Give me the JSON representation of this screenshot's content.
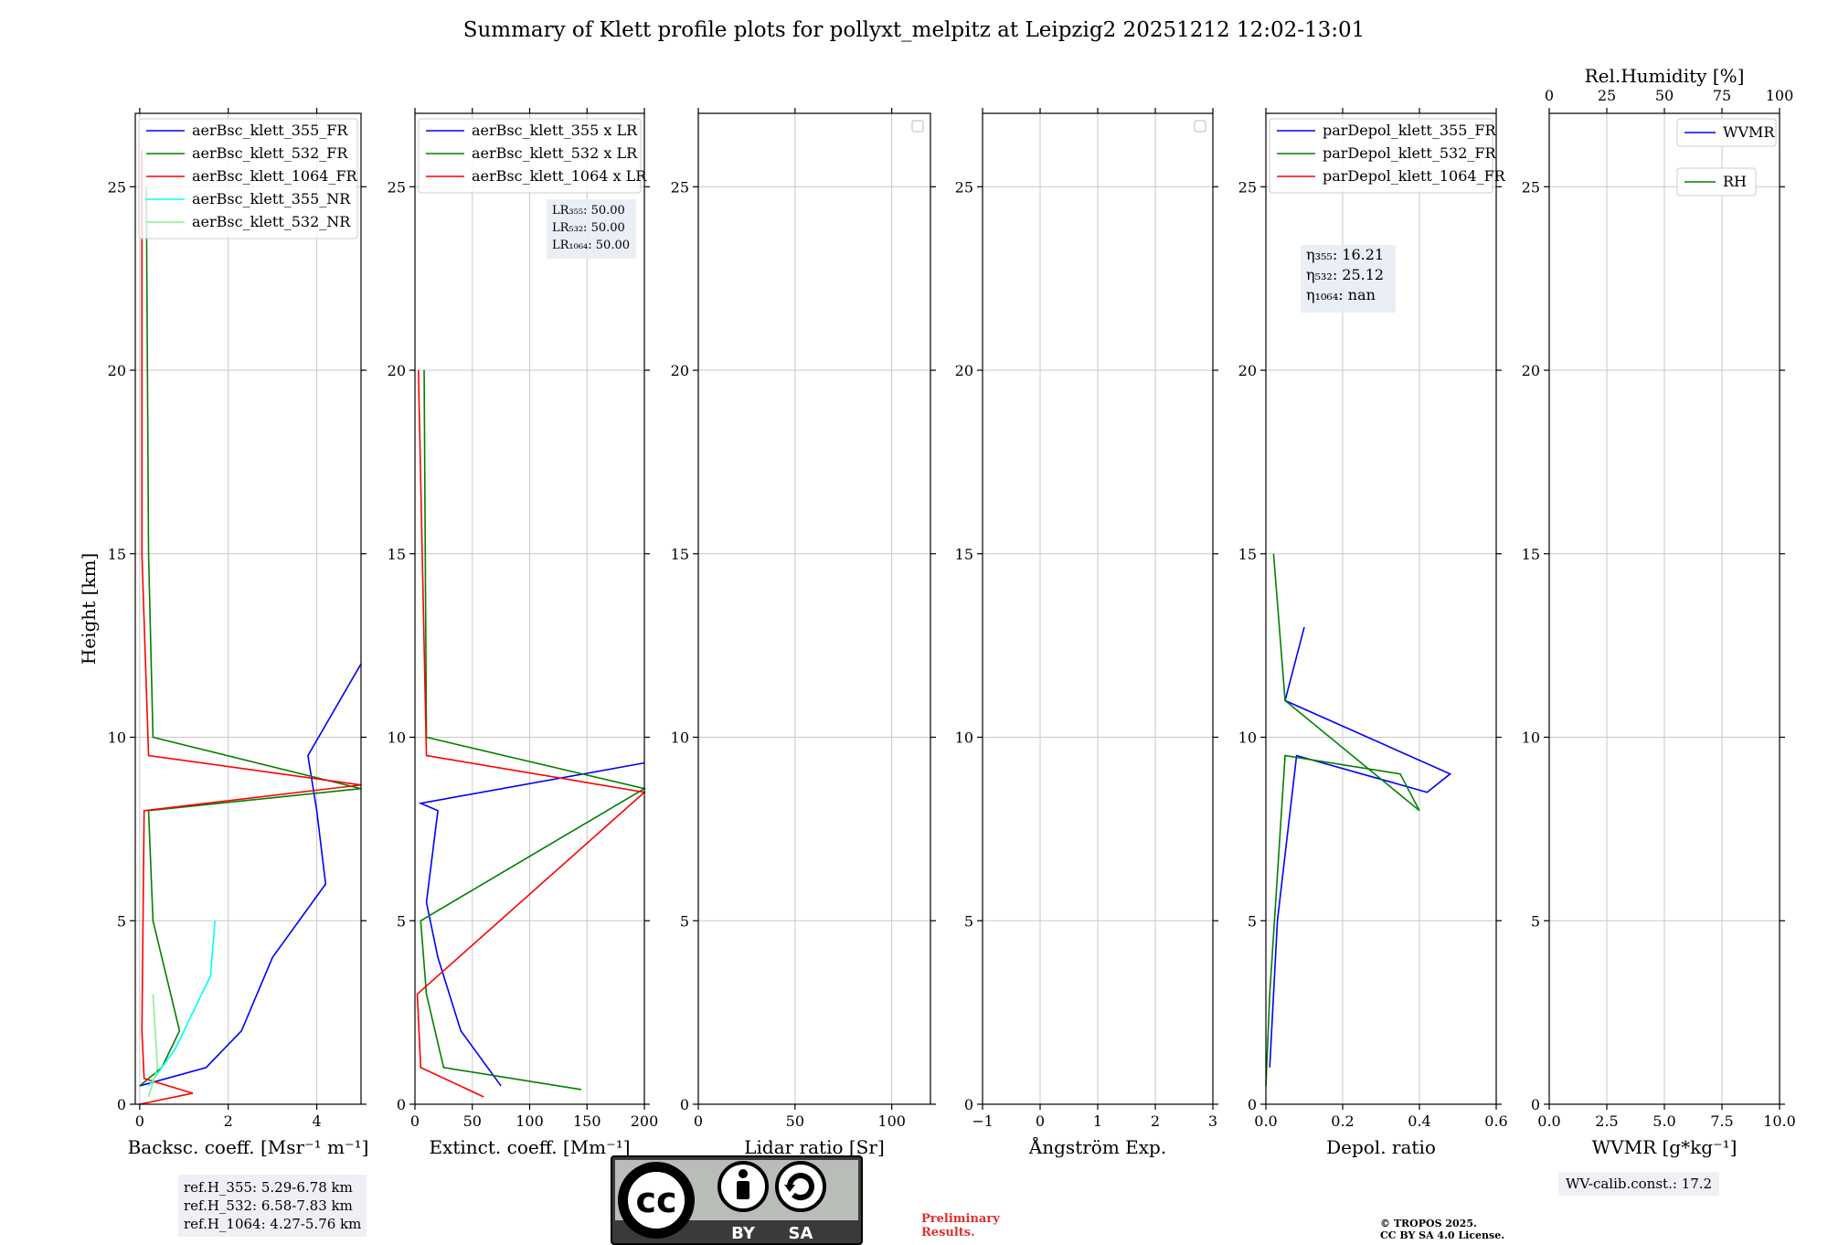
{
  "title": "Summary of Klett profile plots for pollyxt_melpitz at Leipzig2 20251212 12:02-13:01",
  "chart_data": [
    {
      "type": "line",
      "xlabel": "Backsc. coeff. [Msr⁻¹ m⁻¹]",
      "ylabel": "Height [km]",
      "xlim": [
        -0.1,
        5
      ],
      "ylim": [
        0,
        27
      ],
      "xticks": [
        0,
        2,
        4
      ],
      "yticks": [
        0,
        5,
        10,
        15,
        20,
        25
      ],
      "grid": true,
      "legend": "top",
      "series": [
        {
          "name": "aerBsc_klett_355_FR",
          "color": "#0000ff",
          "x": [
            0.0,
            1.5,
            2.3,
            3.0,
            4.2,
            4.0,
            3.8,
            5.0
          ],
          "y": [
            0.5,
            1.0,
            2.0,
            4.0,
            6.0,
            8.0,
            9.5,
            12.0
          ]
        },
        {
          "name": "aerBsc_klett_532_FR",
          "color": "#008000",
          "x": [
            0.0,
            0.5,
            0.9,
            0.3,
            0.2,
            5.0,
            0.3,
            0.2,
            0.15
          ],
          "y": [
            0.5,
            1.0,
            2.0,
            5.0,
            8.0,
            8.6,
            10.0,
            15.0,
            25.0
          ]
        },
        {
          "name": "aerBsc_klett_1064_FR",
          "color": "#ff0000",
          "x": [
            0.0,
            1.2,
            0.1,
            0.05,
            0.1,
            5.0,
            0.2,
            0.05,
            0.05
          ],
          "y": [
            0.0,
            0.3,
            0.7,
            2.0,
            8.0,
            8.7,
            9.5,
            15.0,
            26.0
          ]
        },
        {
          "name": "aerBsc_klett_355_NR",
          "color": "#00ffff",
          "x": [
            0.2,
            0.8,
            1.2,
            1.6,
            1.7
          ],
          "y": [
            0.5,
            1.5,
            2.5,
            3.5,
            5.0
          ]
        },
        {
          "name": "aerBsc_klett_532_NR",
          "color": "#90ee90",
          "x": [
            0.2,
            0.4,
            0.3
          ],
          "y": [
            0.2,
            1.0,
            3.0
          ]
        }
      ],
      "legend_entries": [
        "aerBsc_klett_355_FR",
        "aerBsc_klett_532_FR",
        "aerBsc_klett_1064_FR",
        "aerBsc_klett_355_NR",
        "aerBsc_klett_532_NR"
      ]
    },
    {
      "type": "line",
      "xlabel": "Extinct. coeff. [Mm⁻¹]",
      "xlim": [
        0,
        200
      ],
      "ylim": [
        0,
        27
      ],
      "xticks": [
        0,
        50,
        100,
        150,
        200
      ],
      "yticks": [
        0,
        5,
        10,
        15,
        20,
        25
      ],
      "grid": true,
      "legend": "top",
      "series": [
        {
          "name": "aerBsc_klett_355 x LR",
          "color": "#0000ff",
          "x": [
            75,
            40,
            20,
            10,
            20,
            5,
            200
          ],
          "y": [
            0.5,
            2.0,
            4.0,
            5.5,
            8.0,
            8.2,
            9.3
          ]
        },
        {
          "name": "aerBsc_klett_532 x LR",
          "color": "#008000",
          "x": [
            145,
            25,
            10,
            5,
            200,
            10,
            8
          ],
          "y": [
            0.4,
            1.0,
            3.0,
            5.0,
            8.6,
            10.0,
            20.0
          ]
        },
        {
          "name": "aerBsc_klett_1064 x LR",
          "color": "#ff0000",
          "x": [
            60,
            5,
            2,
            200,
            10,
            3
          ],
          "y": [
            0.2,
            1.0,
            3.0,
            8.5,
            9.5,
            20.0
          ]
        }
      ],
      "legend_entries": [
        "aerBsc_klett_355 x LR",
        "aerBsc_klett_532 x LR",
        "aerBsc_klett_1064 x LR"
      ],
      "annotation": "LR₃₅₅: 50.00\nLR₅₃₂: 50.00\nLR₁₀₆₄: 50.00"
    },
    {
      "type": "line",
      "xlabel": "Lidar ratio [Sr]",
      "xlim": [
        0,
        120
      ],
      "ylim": [
        0,
        27
      ],
      "xticks": [
        0,
        50,
        100
      ],
      "yticks": [
        0,
        5,
        10,
        15,
        20,
        25
      ],
      "grid": true,
      "series": []
    },
    {
      "type": "line",
      "xlabel": "Ångström Exp.",
      "xlim": [
        -1,
        3
      ],
      "ylim": [
        0,
        27
      ],
      "xticks": [
        -1,
        0,
        1,
        2,
        3
      ],
      "yticks": [
        0,
        5,
        10,
        15,
        20,
        25
      ],
      "grid": true,
      "series": []
    },
    {
      "type": "line",
      "xlabel": "Depol. ratio",
      "xlim": [
        0,
        0.6
      ],
      "ylim": [
        0,
        27
      ],
      "xticks": [
        0.0,
        0.2,
        0.4,
        0.6
      ],
      "yticks": [
        0,
        5,
        10,
        15,
        20,
        25
      ],
      "grid": true,
      "legend": "top",
      "series": [
        {
          "name": "parDepol_klett_355_FR",
          "color": "#0000ff",
          "x": [
            0.01,
            0.02,
            0.03,
            0.08,
            0.42,
            0.48,
            0.05,
            0.1
          ],
          "y": [
            1.0,
            3.0,
            5.0,
            9.5,
            8.5,
            9.0,
            11.0,
            13.0
          ]
        },
        {
          "name": "parDepol_klett_532_FR",
          "color": "#008000",
          "x": [
            0.0,
            0.01,
            0.05,
            0.35,
            0.4,
            0.05,
            0.02
          ],
          "y": [
            0.5,
            3.0,
            9.5,
            9.0,
            8.0,
            11.0,
            15.0
          ]
        },
        {
          "name": "parDepol_klett_1064_FR",
          "color": "#ff0000",
          "x": [],
          "y": []
        }
      ],
      "legend_entries": [
        "parDepol_klett_355_FR",
        "parDepol_klett_532_FR",
        "parDepol_klett_1064_FR"
      ],
      "annotation": "η₃₅₅: 16.21\nη₅₃₂: 25.12\nη₁₀₆₄: nan"
    },
    {
      "type": "line",
      "xlabel": "WVMR [g*kg⁻¹]",
      "xlim": [
        0,
        10
      ],
      "ylim": [
        0,
        27
      ],
      "xticks": [
        0.0,
        2.5,
        5.0,
        7.5,
        10.0
      ],
      "yticks": [
        0,
        5,
        10,
        15,
        20,
        25
      ],
      "x2label": "Rel.Humidity [%]",
      "x2lim": [
        0,
        100
      ],
      "x2ticks": [
        0,
        25,
        50,
        75,
        100
      ],
      "grid": true,
      "legend": "top-right",
      "series": [
        {
          "name": "WVMR",
          "color": "#0000ff",
          "x": [],
          "y": []
        },
        {
          "name": "RH",
          "color": "#008000",
          "x": [],
          "y": []
        }
      ],
      "legend_entries": [
        "WVMR",
        "RH"
      ]
    }
  ],
  "ref_heights": {
    "line1": "ref.H_355: 5.29-6.78 km",
    "line2": "ref.H_532: 6.58-7.83 km",
    "line3": "ref.H_1064: 4.27-5.76 km"
  },
  "wv_calib": "WV-calib.const.: 17.2",
  "license": {
    "cc": "cc",
    "by": "BY",
    "sa": "SA",
    "prelim1": "Preliminary",
    "prelim2": "Results.",
    "copy1": "© TROPOS 2025.",
    "copy2": "CC BY SA 4.0 License."
  }
}
